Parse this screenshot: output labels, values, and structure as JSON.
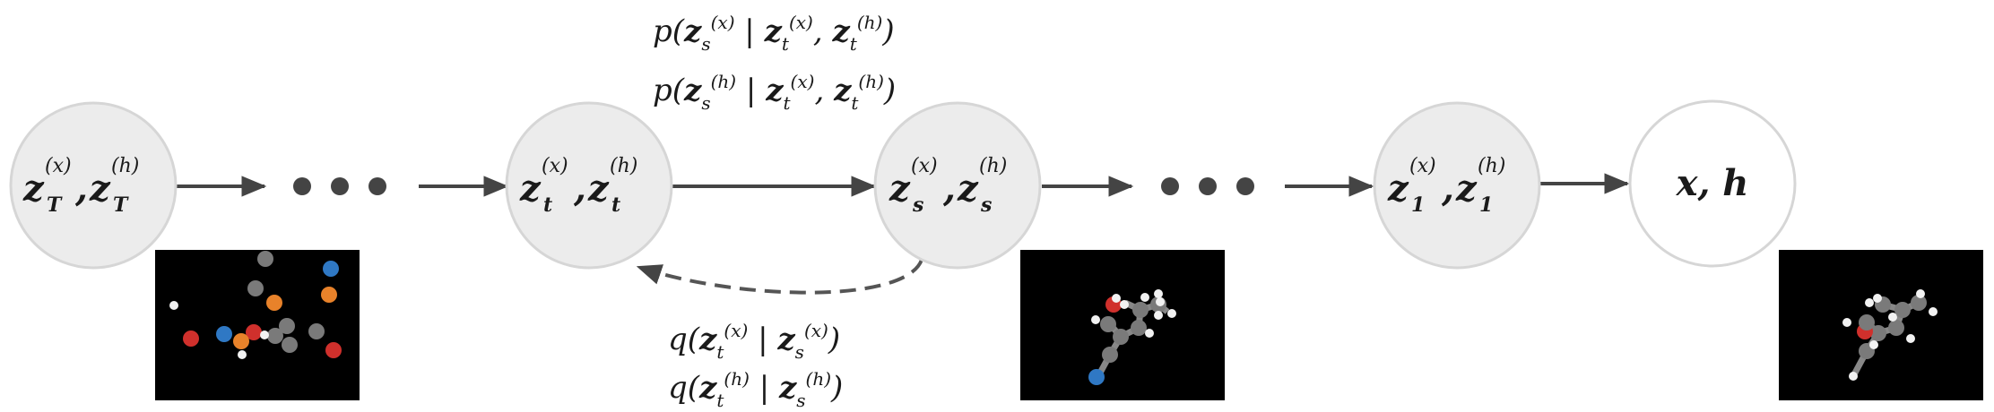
{
  "nodes": [
    {
      "id": "zT",
      "var1": "z",
      "sub": "T",
      "sup1": "(x)",
      "sup2": "(h)"
    },
    {
      "id": "zt",
      "var1": "z",
      "sub": "t",
      "sup1": "(x)",
      "sup2": "(h)"
    },
    {
      "id": "zs",
      "var1": "z",
      "sub": "s",
      "sup1": "(x)",
      "sup2": "(h)"
    },
    {
      "id": "z1",
      "var1": "z",
      "sub": "1",
      "sup1": "(x)",
      "sup2": "(h)"
    },
    {
      "id": "xh",
      "label": "x, h"
    }
  ],
  "ellipsis": "• • •",
  "generative": {
    "line1": "p(z_s^(x) | z_t^(x), z_t^(h))",
    "line2": "p(z_s^(h) | z_t^(x), z_t^(h))"
  },
  "inference": {
    "line1": "q(z_t^(x) | z_s^(x))",
    "line2": "q(z_t^(h) | z_s^(h))"
  },
  "colors": {
    "node_fill": "#ececec",
    "node_stroke": "#d6d6d6",
    "arrow": "#444444",
    "panel": "#000000",
    "atom_carbon": "#7a7a7a",
    "atom_hydrogen": "#f2f2f2",
    "atom_oxygen": "#d0302c",
    "atom_nitrogen": "#2f78c4",
    "atom_other": "#e8822a"
  }
}
